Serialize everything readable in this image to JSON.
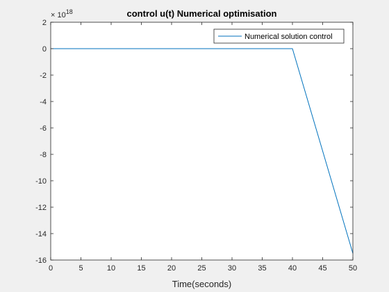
{
  "figure": {
    "background_color": "#f0f0f0",
    "axes_color": "#ffffff",
    "axis_line_color": "#262626"
  },
  "chart_data": {
    "type": "line",
    "title": "control u(t) Numerical optimisation",
    "xlabel": "Time(seconds)",
    "ylabel": "",
    "xlim": [
      0,
      50
    ],
    "ylim": [
      -16,
      2
    ],
    "y_exponent_label": "× 10",
    "y_exponent_power": "18",
    "y_scale_factor": 1e+18,
    "x_ticks": [
      0,
      5,
      10,
      15,
      20,
      25,
      30,
      35,
      40,
      45,
      50
    ],
    "x_tick_labels": [
      "0",
      "5",
      "10",
      "15",
      "20",
      "25",
      "30",
      "35",
      "40",
      "45",
      "50"
    ],
    "y_ticks": [
      2,
      0,
      -2,
      -4,
      -6,
      -8,
      -10,
      -12,
      -14,
      -16
    ],
    "y_tick_labels": [
      "2",
      "0",
      "-2",
      "-4",
      "-6",
      "-8",
      "-10",
      "-12",
      "-14",
      "-16"
    ],
    "grid": false,
    "legend_position": "top-right",
    "series": [
      {
        "name": "Numerical solution control",
        "color": "#0072bd",
        "x": [
          0,
          40,
          50
        ],
        "y": [
          0,
          0,
          -15.5
        ]
      }
    ]
  }
}
